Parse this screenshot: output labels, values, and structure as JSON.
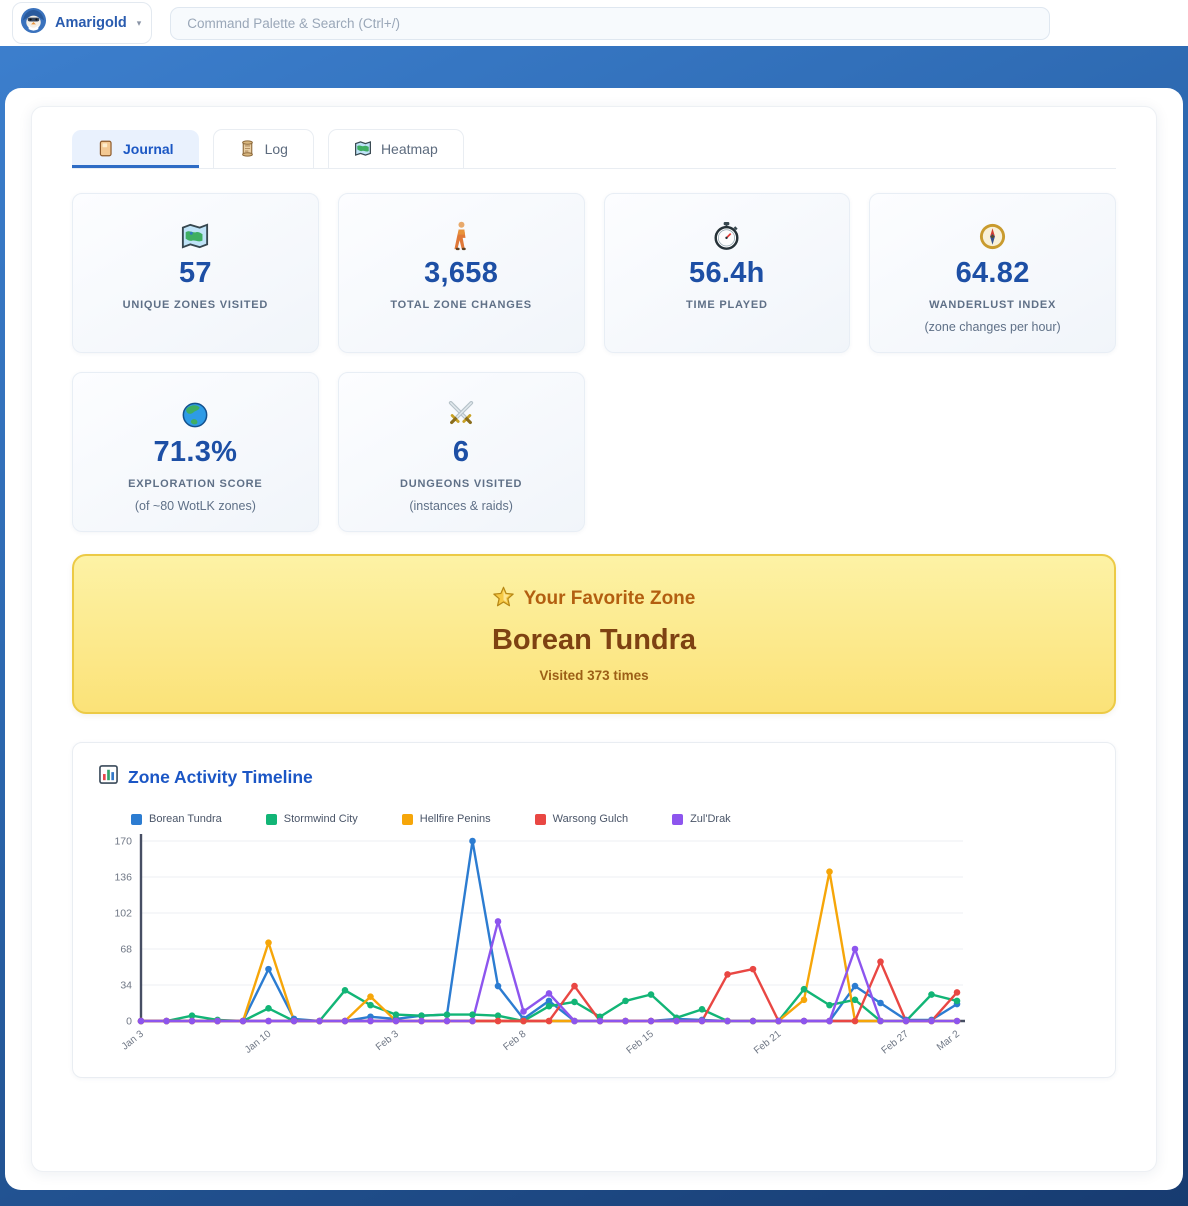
{
  "header": {
    "username": "Amarigold",
    "caret": "▾",
    "search_placeholder": "Command Palette & Search (Ctrl+/)"
  },
  "tabs": [
    {
      "label": "Journal",
      "active": true
    },
    {
      "label": "Log",
      "active": false
    },
    {
      "label": "Heatmap",
      "active": false
    }
  ],
  "stats": {
    "cards": [
      {
        "icon": "map-icon",
        "value": "57",
        "label": "UNIQUE ZONES VISITED",
        "sublabel": ""
      },
      {
        "icon": "walker-icon",
        "value": "3,658",
        "label": "TOTAL ZONE CHANGES",
        "sublabel": ""
      },
      {
        "icon": "stopwatch-icon",
        "value": "56.4h",
        "label": "TIME PLAYED",
        "sublabel": ""
      },
      {
        "icon": "compass-icon",
        "value": "64.82",
        "label": "WANDERLUST INDEX",
        "sublabel": "(zone changes per hour)"
      },
      {
        "icon": "globe-icon",
        "value": "71.3%",
        "label": "EXPLORATION SCORE",
        "sublabel": "(of ~80 WotLK zones)"
      },
      {
        "icon": "swords-icon",
        "value": "6",
        "label": "DUNGEONS VISITED",
        "sublabel": "(instances & raids)"
      }
    ]
  },
  "favorite": {
    "title": "Your Favorite Zone",
    "zone": "Borean Tundra",
    "subtitle": "Visited 373 times"
  },
  "chart_panel": {
    "title": "Zone Activity Timeline"
  },
  "chart_data": {
    "type": "line",
    "title": "Zone Activity Timeline",
    "n_points": 33,
    "x_tick_labels": [
      {
        "index": 0,
        "label": "Jan 3"
      },
      {
        "index": 5,
        "label": "Jan 10"
      },
      {
        "index": 10,
        "label": "Feb 3"
      },
      {
        "index": 15,
        "label": "Feb 8"
      },
      {
        "index": 20,
        "label": "Feb 15"
      },
      {
        "index": 25,
        "label": "Feb 21"
      },
      {
        "index": 30,
        "label": "Feb 27"
      },
      {
        "index": 32,
        "label": "Mar 2"
      }
    ],
    "y_ticks": [
      0,
      34,
      68,
      102,
      136,
      170
    ],
    "ylim": [
      0,
      170
    ],
    "grid": true,
    "legend_position": "top",
    "series": [
      {
        "name": "Borean Tundra",
        "color": "#2c7cd1",
        "values": [
          0,
          0,
          0,
          0,
          0,
          49,
          2,
          0,
          0,
          4,
          2,
          5,
          6,
          170,
          33,
          2,
          19,
          0,
          0,
          0,
          0,
          2,
          1,
          0,
          0,
          0,
          0,
          0,
          33,
          17,
          1,
          1,
          16
        ]
      },
      {
        "name": "Stormwind City",
        "color": "#12b576",
        "values": [
          0,
          0,
          5,
          1,
          0,
          12,
          0,
          0,
          29,
          15,
          6,
          5,
          6,
          6,
          5,
          0,
          14,
          18,
          4,
          19,
          25,
          3,
          11,
          0,
          0,
          0,
          30,
          15,
          20,
          0,
          0,
          25,
          19
        ]
      },
      {
        "name": "Hellfire Penins",
        "color": "#f6a609",
        "values": [
          0,
          0,
          0,
          0,
          0,
          74,
          0,
          0,
          0,
          23,
          0,
          0,
          0,
          0,
          0,
          0,
          0,
          0,
          0,
          0,
          0,
          0,
          0,
          0,
          0,
          0,
          20,
          141,
          0,
          0,
          0,
          0,
          0
        ]
      },
      {
        "name": "Warsong Gulch",
        "color": "#e94743",
        "values": [
          0,
          0,
          0,
          0,
          0,
          0,
          0,
          0,
          0,
          0,
          0,
          0,
          0,
          0,
          0,
          0,
          0,
          33,
          0,
          0,
          0,
          0,
          0,
          44,
          49,
          0,
          0,
          0,
          0,
          56,
          0,
          0,
          27
        ]
      },
      {
        "name": "Zul'Drak",
        "color": "#8d55ee",
        "values": [
          0,
          0,
          0,
          0,
          0,
          0,
          0,
          0,
          0,
          0,
          0,
          0,
          0,
          0,
          94,
          9,
          26,
          0,
          0,
          0,
          0,
          0,
          0,
          0,
          0,
          0,
          0,
          0,
          68,
          0,
          0,
          0,
          0
        ]
      }
    ]
  }
}
